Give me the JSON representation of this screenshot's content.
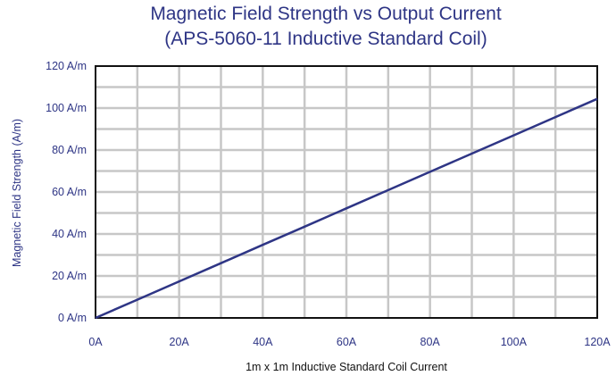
{
  "chart_data": {
    "type": "line",
    "title": "Magnetic Field Strength vs Output Current",
    "subtitle": "(APS-5060-11 Inductive Standard Coil)",
    "xlabel": "1m x 1m Inductive Standard Coil Current",
    "ylabel": "Magnetic Field Strength (A/m)",
    "xlim": [
      0,
      120
    ],
    "ylim": [
      0,
      120
    ],
    "xticks": [
      "0A",
      "20A",
      "40A",
      "60A",
      "80A",
      "100A",
      "120A"
    ],
    "yticks": [
      "0 A/m",
      "20 A/m",
      "40 A/m",
      "60 A/m",
      "80 A/m",
      "100 A/m",
      "120 A/m"
    ],
    "grid": true,
    "series": [
      {
        "x": [
          0,
          10,
          20,
          30,
          40,
          50,
          60,
          70,
          80,
          90,
          100,
          110,
          120
        ],
        "y": [
          0,
          8.7,
          17.4,
          26.1,
          34.8,
          43.5,
          52.2,
          60.9,
          69.6,
          78.3,
          87.0,
          95.7,
          104.4
        ]
      }
    ],
    "colors": {
      "line": "#2e3585",
      "grid": "#c7c7c7",
      "axis": "#111111",
      "text": "#2e3585"
    }
  }
}
